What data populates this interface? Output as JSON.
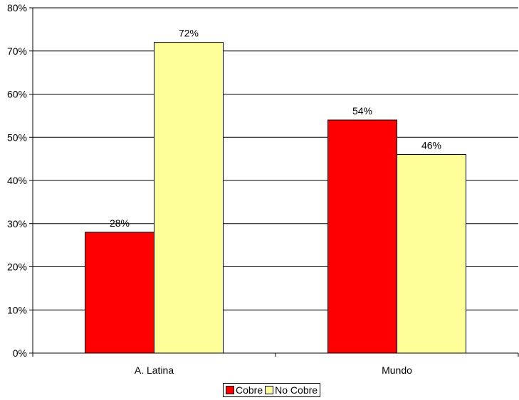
{
  "chart_data": {
    "type": "bar",
    "categories": [
      "A. Latina",
      "Mundo"
    ],
    "series": [
      {
        "name": "Cobre",
        "values": [
          28,
          54
        ],
        "color": "#ff0000"
      },
      {
        "name": "No Cobre",
        "values": [
          72,
          46
        ],
        "color": "#ffff99"
      }
    ],
    "data_labels": [
      [
        "28%",
        "54%"
      ],
      [
        "72%",
        "46%"
      ]
    ],
    "y_ticks": [
      "0%",
      "10%",
      "20%",
      "30%",
      "40%",
      "50%",
      "60%",
      "70%",
      "80%"
    ],
    "ylim": [
      0,
      80
    ],
    "grid": true,
    "legend_position": "bottom"
  }
}
